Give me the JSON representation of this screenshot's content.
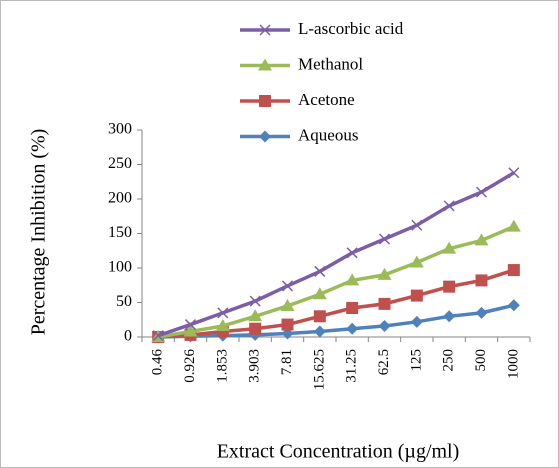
{
  "chart_data": {
    "type": "line",
    "xlabel": "Extract Concentration (µg/ml)",
    "ylabel": "Percentage Inhibition (%)",
    "categories": [
      "0.46",
      "0.926",
      "1.853",
      "3.903",
      "7.81",
      "15.625",
      "31.25",
      "62.5",
      "125",
      "250",
      "500",
      "1000"
    ],
    "series": [
      {
        "name": "L-ascorbic acid",
        "color": "#7b5ea7",
        "marker": "x",
        "values": [
          2,
          18,
          35,
          52,
          74,
          95,
          122,
          142,
          162,
          190,
          210,
          238
        ]
      },
      {
        "name": "Methanol",
        "color": "#9bbb59",
        "marker": "triangle",
        "values": [
          0,
          8,
          16,
          30,
          45,
          62,
          82,
          90,
          108,
          128,
          140,
          160
        ]
      },
      {
        "name": "Acetone",
        "color": "#c0504d",
        "marker": "square",
        "values": [
          0,
          3,
          8,
          12,
          18,
          30,
          42,
          48,
          60,
          73,
          82,
          97
        ]
      },
      {
        "name": "Aqueous",
        "color": "#4f81bd",
        "marker": "diamond",
        "values": [
          0,
          1,
          2,
          3,
          5,
          8,
          12,
          16,
          22,
          30,
          35,
          46
        ]
      }
    ],
    "ylim": [
      0,
      300
    ],
    "yticks": [
      0,
      50,
      100,
      150,
      200,
      250,
      300
    ],
    "grid": false
  }
}
